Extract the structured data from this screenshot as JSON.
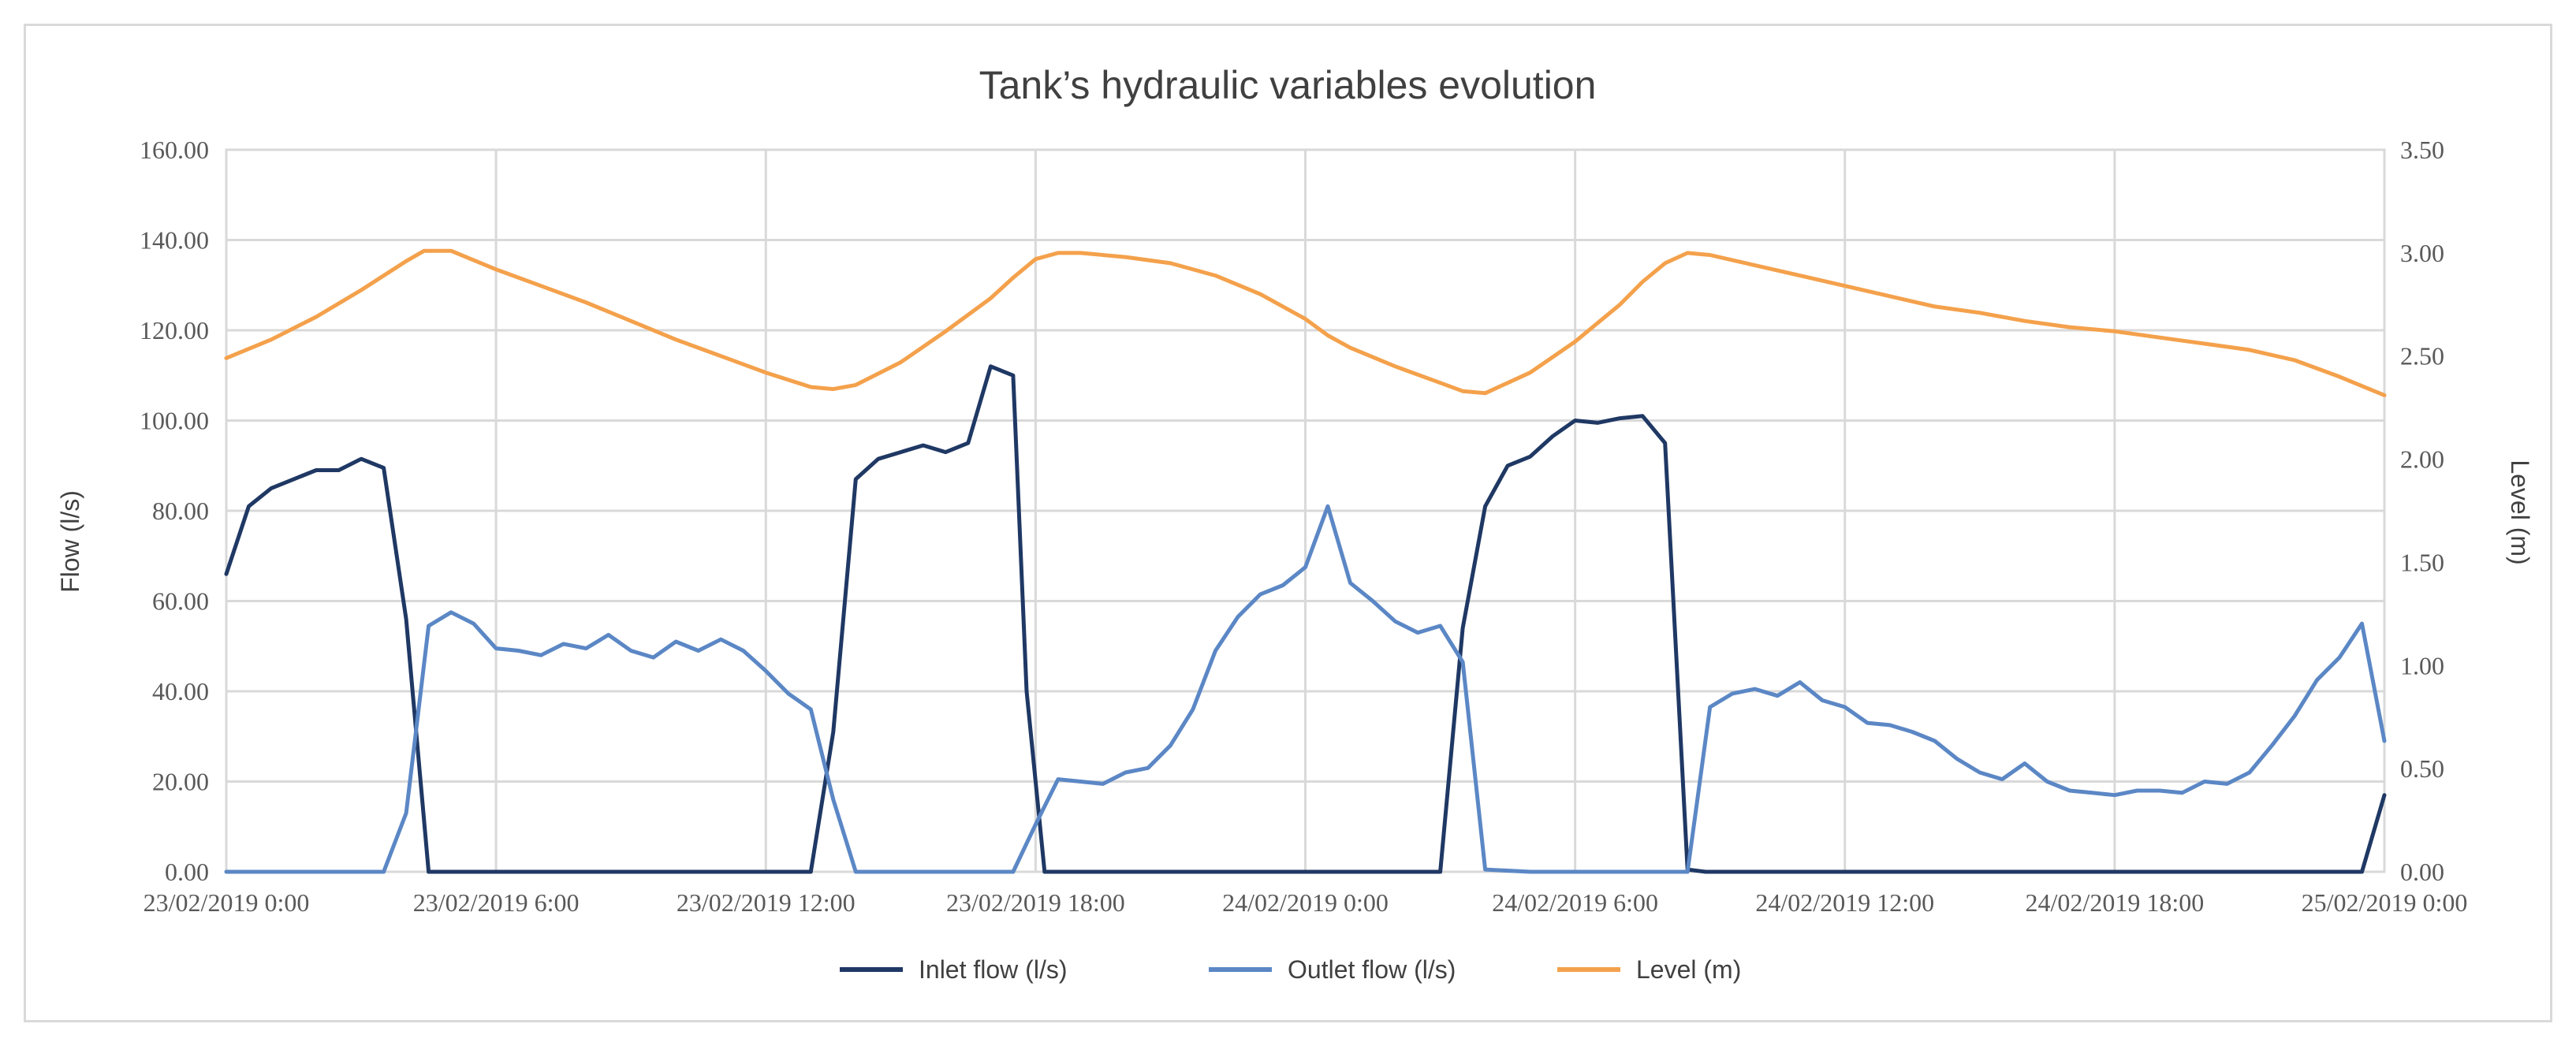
{
  "chart_data": {
    "type": "line",
    "title": "Tank’s hydraulic variables evolution",
    "ylabel_left": "Flow (l/s)",
    "ylabel_right": "Level (m)",
    "ylim_left": [
      0,
      160
    ],
    "ylim_right": [
      0,
      3.5
    ],
    "grid": true,
    "legend_position": "bottom-center",
    "x_range_hours": [
      0,
      48
    ],
    "y_left_ticks": [
      "0.00",
      "20.00",
      "40.00",
      "60.00",
      "80.00",
      "100.00",
      "120.00",
      "140.00",
      "160.00"
    ],
    "y_right_ticks": [
      "0.00",
      "0.50",
      "1.00",
      "1.50",
      "2.00",
      "2.50",
      "3.00",
      "3.50"
    ],
    "x_ticks": [
      {
        "hour": 0,
        "label": "23/02/2019 0:00"
      },
      {
        "hour": 6,
        "label": "23/02/2019 6:00"
      },
      {
        "hour": 12,
        "label": "23/02/2019 12:00"
      },
      {
        "hour": 18,
        "label": "23/02/2019 18:00"
      },
      {
        "hour": 24,
        "label": "24/02/2019 0:00"
      },
      {
        "hour": 30,
        "label": "24/02/2019 6:00"
      },
      {
        "hour": 36,
        "label": "24/02/2019 12:00"
      },
      {
        "hour": 42,
        "label": "24/02/2019 18:00"
      },
      {
        "hour": 48,
        "label": "25/02/2019 0:00"
      }
    ],
    "series": [
      {
        "name": "Inlet flow (l/s)",
        "axis": "left",
        "color": "#1f3864",
        "x": [
          0,
          0.5,
          1,
          1.5,
          2,
          2.5,
          3,
          3.5,
          4,
          4.5,
          5,
          6,
          7,
          8,
          9,
          10,
          11,
          12,
          13,
          13.5,
          14,
          14.5,
          15,
          15.5,
          16,
          16.5,
          17,
          17.5,
          17.8,
          18.2,
          18.5,
          19,
          20,
          21,
          22,
          23,
          24,
          25,
          26,
          27,
          27.5,
          28,
          28.5,
          29,
          29.5,
          30,
          30.5,
          31,
          31.5,
          32,
          32.5,
          32.9,
          33.3,
          33.8,
          34,
          35,
          36,
          37,
          38,
          39,
          40,
          41,
          42,
          43,
          44,
          45,
          46,
          47,
          47.5,
          48
        ],
        "y": [
          66,
          81,
          85,
          87,
          89,
          89,
          91.5,
          89.5,
          56,
          0,
          0,
          0,
          0,
          0,
          0,
          0,
          0,
          0,
          0,
          31,
          87,
          91.5,
          93,
          94.5,
          93,
          95,
          112,
          110,
          40,
          0,
          0,
          0,
          0,
          0,
          0,
          0,
          0,
          0,
          0,
          0,
          54,
          81,
          90,
          92,
          96.5,
          100,
          99.5,
          100.5,
          101,
          95,
          0.5,
          0,
          0,
          0,
          0,
          0,
          0,
          0,
          0,
          0,
          0,
          0,
          0,
          0,
          0,
          0,
          0,
          0,
          0,
          17
        ]
      },
      {
        "name": "Outlet flow (l/s)",
        "axis": "left",
        "color": "#5b87c5",
        "x": [
          0,
          1,
          2,
          3,
          3.5,
          4,
          4.5,
          5,
          5.5,
          6,
          6.5,
          7,
          7.5,
          8,
          8.5,
          9,
          9.5,
          10,
          10.5,
          11,
          11.5,
          12,
          12.5,
          13,
          13.5,
          14,
          15,
          16,
          17,
          17.5,
          18,
          18.5,
          19,
          19.5,
          20,
          20.5,
          21,
          21.5,
          22,
          22.5,
          23,
          23.5,
          24,
          24.5,
          25,
          25.5,
          26,
          26.5,
          27,
          27.5,
          28,
          29,
          30,
          31,
          32,
          32.5,
          33,
          33.5,
          34,
          34.5,
          35,
          35.5,
          36,
          36.5,
          37,
          37.5,
          38,
          38.5,
          39,
          39.5,
          40,
          40.5,
          41,
          41.5,
          42,
          42.5,
          43,
          43.5,
          44,
          44.5,
          45,
          45.5,
          46,
          46.5,
          47,
          47.5,
          48
        ],
        "y": [
          0,
          0,
          0,
          0,
          0,
          13,
          54.5,
          57.5,
          55,
          49.5,
          49,
          48,
          50.5,
          49.5,
          52.5,
          49,
          47.5,
          51,
          49,
          51.5,
          49,
          44.5,
          39.5,
          36,
          16,
          0,
          0,
          0,
          0,
          0,
          10.5,
          20.5,
          20,
          19.5,
          22,
          23,
          28,
          36,
          49,
          56.5,
          61.5,
          63.5,
          67.5,
          81,
          64,
          60,
          55.5,
          53,
          54.5,
          46.5,
          0.5,
          0,
          0,
          0,
          0,
          0,
          36.5,
          39.5,
          40.5,
          39,
          42,
          38,
          36.5,
          33,
          32.5,
          31,
          29,
          25,
          22,
          20.5,
          24,
          20,
          18,
          17.5,
          17,
          18,
          18,
          17.5,
          20,
          19.5,
          22,
          28,
          34.5,
          42.5,
          47.5,
          55,
          29
        ]
      },
      {
        "name": "Level (m)",
        "axis": "right",
        "color": "#f4a14c",
        "x": [
          0,
          1,
          2,
          3,
          4,
          4.4,
          5,
          6,
          7,
          8,
          9,
          10,
          11,
          12,
          13,
          13.5,
          14,
          15,
          16,
          17,
          17.5,
          18,
          18.5,
          19,
          20,
          21,
          22,
          23,
          24,
          24.5,
          25,
          26,
          27,
          27.5,
          28,
          29,
          30,
          31,
          31.5,
          32,
          32.5,
          33,
          34,
          35,
          36,
          37,
          38,
          39,
          40,
          41,
          42,
          43,
          44,
          45,
          46,
          47,
          48
        ],
        "y": [
          2.49,
          2.58,
          2.69,
          2.82,
          2.96,
          3.01,
          3.01,
          2.92,
          2.84,
          2.76,
          2.67,
          2.58,
          2.5,
          2.42,
          2.35,
          2.34,
          2.36,
          2.47,
          2.62,
          2.78,
          2.88,
          2.97,
          3.0,
          3.0,
          2.98,
          2.95,
          2.89,
          2.8,
          2.68,
          2.6,
          2.54,
          2.45,
          2.37,
          2.33,
          2.32,
          2.42,
          2.57,
          2.75,
          2.86,
          2.95,
          3.0,
          2.99,
          2.94,
          2.89,
          2.84,
          2.79,
          2.74,
          2.71,
          2.67,
          2.64,
          2.62,
          2.59,
          2.56,
          2.53,
          2.48,
          2.4,
          2.31
        ]
      }
    ]
  }
}
